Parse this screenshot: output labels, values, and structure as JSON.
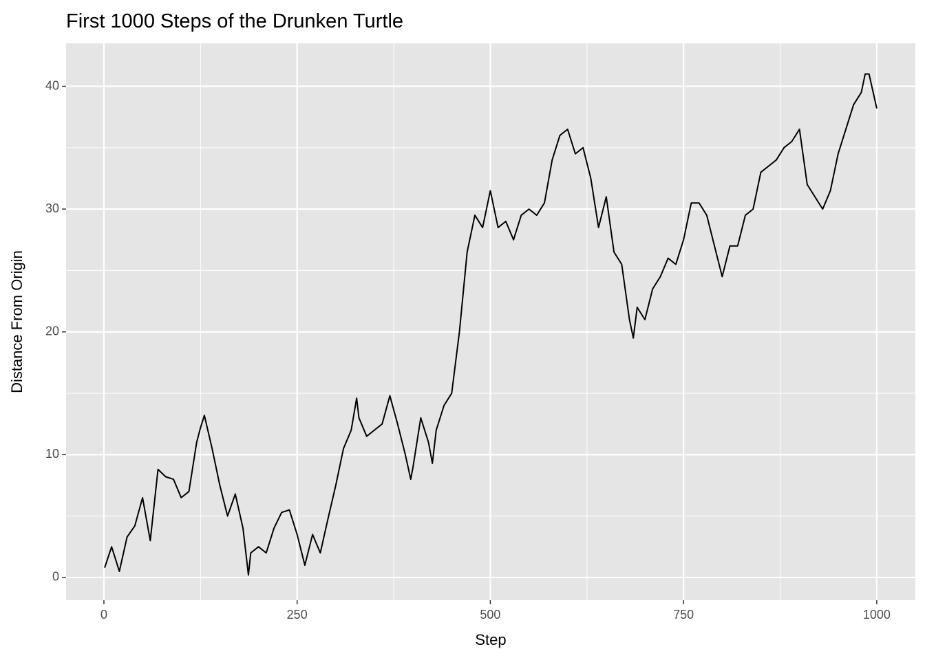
{
  "chart_data": {
    "type": "line",
    "title": "First 1000 Steps of the Drunken Turtle",
    "x_label": "Step",
    "y_label": "Distance From Origin",
    "x": [
      1,
      10,
      20,
      30,
      40,
      50,
      60,
      70,
      80,
      90,
      100,
      110,
      120,
      125,
      130,
      140,
      150,
      160,
      170,
      180,
      187,
      190,
      200,
      210,
      220,
      230,
      240,
      250,
      260,
      270,
      280,
      290,
      300,
      310,
      320,
      327,
      330,
      340,
      350,
      360,
      370,
      380,
      390,
      397,
      400,
      410,
      420,
      425,
      430,
      440,
      450,
      460,
      470,
      480,
      490,
      500,
      510,
      520,
      530,
      540,
      550,
      560,
      570,
      580,
      590,
      600,
      610,
      620,
      630,
      640,
      650,
      660,
      670,
      680,
      685,
      690,
      700,
      710,
      720,
      730,
      740,
      750,
      760,
      770,
      780,
      790,
      800,
      810,
      820,
      830,
      840,
      850,
      860,
      870,
      880,
      890,
      900,
      910,
      920,
      930,
      940,
      950,
      960,
      970,
      980,
      985,
      990,
      1000
    ],
    "series": [
      {
        "name": "Distance",
        "color": "#000000",
        "values": [
          0.8,
          2.5,
          0.5,
          3.3,
          4.2,
          6.5,
          3,
          8.8,
          8.2,
          8,
          6.5,
          7,
          11,
          12.2,
          13.2,
          10.5,
          7.5,
          5,
          6.8,
          4,
          0.2,
          2,
          2.5,
          2,
          4,
          5.3,
          5.5,
          3.5,
          1,
          3.5,
          2,
          4.8,
          7.5,
          10.5,
          12,
          14.6,
          13,
          11.5,
          12,
          12.5,
          14.8,
          12.5,
          10,
          8,
          9,
          13,
          11,
          9.3,
          12,
          14,
          15,
          20,
          26.5,
          29.5,
          28.5,
          31.5,
          28.5,
          29,
          27.5,
          29.5,
          30,
          29.5,
          30.5,
          34,
          36,
          36.5,
          34.5,
          35,
          32.5,
          28.5,
          31,
          26.5,
          25.5,
          21,
          19.5,
          22,
          21,
          23.5,
          24.5,
          26,
          25.5,
          27.5,
          30.5,
          30.5,
          29.5,
          27,
          24.5,
          27,
          27,
          29.5,
          30,
          33,
          33.5,
          34,
          35,
          35.5,
          36.5,
          32,
          31,
          30,
          31.5,
          34.5,
          36.5,
          38.5,
          39.5,
          41,
          41,
          38.2
        ]
      }
    ],
    "xlim": [
      -48.95,
      1049.95
    ],
    "xticks": [
      0,
      250,
      500,
      750,
      1000
    ],
    "x_minor_grid": [
      125,
      375,
      625,
      875
    ],
    "ylim": [
      -1.85,
      43.5
    ],
    "yticks": [
      0,
      10,
      20,
      30,
      40
    ],
    "y_minor_grid": [
      5,
      15,
      25,
      35
    ],
    "grid": true,
    "background": "#e5e5e5"
  }
}
